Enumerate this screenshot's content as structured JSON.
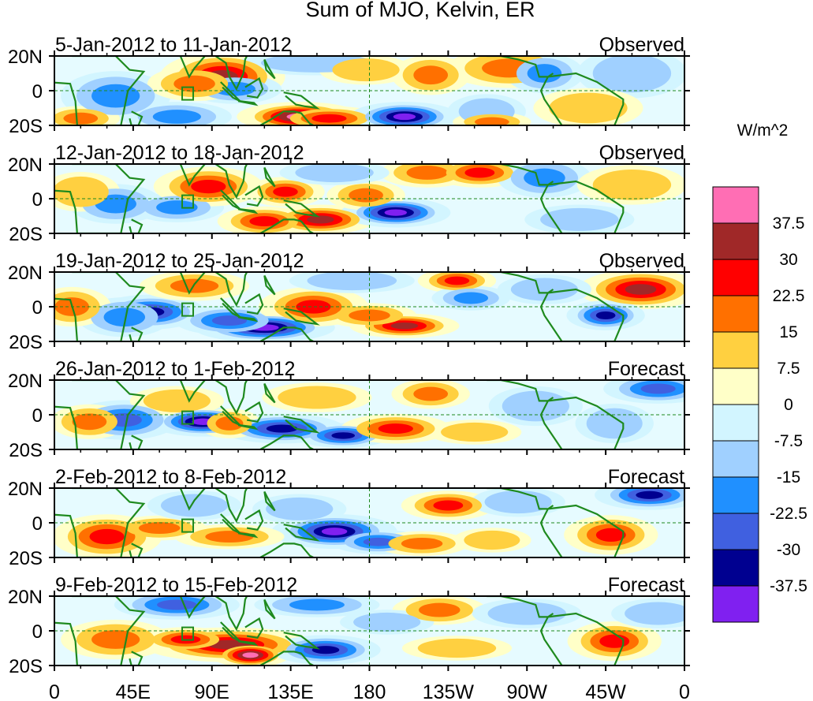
{
  "chart_data": {
    "type": "heatmap",
    "title": "Sum of MJO, Kelvin, ER",
    "units": "W/m^2",
    "x_tick_labels": [
      "0",
      "45E",
      "90E",
      "135E",
      "180",
      "135W",
      "90W",
      "45W",
      "0"
    ],
    "x_ticks_deg": [
      0,
      45,
      90,
      135,
      180,
      225,
      270,
      315,
      360
    ],
    "y_tick_labels": [
      "20N",
      "0",
      "20S"
    ],
    "y_ticks_deg": [
      20,
      0,
      -20
    ],
    "ylim": [
      -20,
      20
    ],
    "xlim": [
      0,
      360
    ],
    "colorbar": {
      "levels": [
        "37.5",
        "30",
        "22.5",
        "15",
        "7.5",
        "0",
        "-7.5",
        "-15",
        "-22.5",
        "-30",
        "-37.5"
      ],
      "colors": [
        "#ff6eb4",
        "#a02828",
        "#ff0000",
        "#ff7000",
        "#ffd040",
        "#ffffc8",
        "#d2f5ff",
        "#a0d0ff",
        "#2090ff",
        "#4060e0",
        "#000090",
        "#8020f0"
      ]
    },
    "panels": [
      {
        "label": "5-Jan-2012 to 11-Jan-2012",
        "type_label": "Observed",
        "blobs": [
          {
            "lon": 96,
            "lat": 8,
            "w": 16,
            "h": 10,
            "v": 30
          },
          {
            "lon": 103,
            "lat": 1,
            "w": 12,
            "h": 6,
            "v": -15
          },
          {
            "lon": 35,
            "lat": -3,
            "w": 14,
            "h": 10,
            "v": -15
          },
          {
            "lon": 80,
            "lat": 4,
            "w": 12,
            "h": 7,
            "v": 15
          },
          {
            "lon": 140,
            "lat": -15,
            "w": 16,
            "h": 6,
            "v": 38
          },
          {
            "lon": 157,
            "lat": -16,
            "w": 14,
            "h": 5,
            "v": 22.5
          },
          {
            "lon": 200,
            "lat": -15,
            "w": 14,
            "h": 6,
            "v": -40
          },
          {
            "lon": 70,
            "lat": -15,
            "w": 14,
            "h": 6,
            "v": -15
          },
          {
            "lon": 215,
            "lat": 9,
            "w": 10,
            "h": 8,
            "v": 15
          },
          {
            "lon": 260,
            "lat": 13,
            "w": 16,
            "h": 8,
            "v": 15
          },
          {
            "lon": 247,
            "lat": -12,
            "w": 10,
            "h": 7,
            "v": -7.5
          },
          {
            "lon": 280,
            "lat": 10,
            "w": 10,
            "h": 8,
            "v": -15
          },
          {
            "lon": 330,
            "lat": 10,
            "w": 14,
            "h": 10,
            "v": -7.5
          },
          {
            "lon": 150,
            "lat": 16,
            "w": 20,
            "h": 5,
            "v": -7.5
          },
          {
            "lon": 178,
            "lat": 12,
            "w": 12,
            "h": 6,
            "v": 7.5
          },
          {
            "lon": 15,
            "lat": -16,
            "w": 10,
            "h": 5,
            "v": 15
          },
          {
            "lon": 305,
            "lat": -10,
            "w": 14,
            "h": 8,
            "v": 7.5
          },
          {
            "lon": 250,
            "lat": -18,
            "w": 10,
            "h": 4,
            "v": 15
          }
        ]
      },
      {
        "label": "12-Jan-2012 to 18-Jan-2012",
        "type_label": "Observed",
        "blobs": [
          {
            "lon": 70,
            "lat": -5,
            "w": 12,
            "h": 6,
            "v": -15
          },
          {
            "lon": 88,
            "lat": 7,
            "w": 14,
            "h": 8,
            "v": 22.5
          },
          {
            "lon": 132,
            "lat": 4,
            "w": 10,
            "h": 6,
            "v": 22.5
          },
          {
            "lon": 152,
            "lat": -12,
            "w": 14,
            "h": 6,
            "v": 30
          },
          {
            "lon": 195,
            "lat": -8,
            "w": 14,
            "h": 6,
            "v": -40
          },
          {
            "lon": 120,
            "lat": -13,
            "w": 12,
            "h": 6,
            "v": 22.5
          },
          {
            "lon": 213,
            "lat": 15,
            "w": 12,
            "h": 6,
            "v": 15
          },
          {
            "lon": 243,
            "lat": 15,
            "w": 12,
            "h": 6,
            "v": 22.5
          },
          {
            "lon": 35,
            "lat": -3,
            "w": 12,
            "h": 8,
            "v": -15
          },
          {
            "lon": 15,
            "lat": 4,
            "w": 10,
            "h": 8,
            "v": 7.5
          },
          {
            "lon": 178,
            "lat": 2,
            "w": 10,
            "h": 6,
            "v": 15
          },
          {
            "lon": 280,
            "lat": 12,
            "w": 12,
            "h": 8,
            "v": -15
          },
          {
            "lon": 300,
            "lat": -12,
            "w": 14,
            "h": 6,
            "v": -7.5
          },
          {
            "lon": 330,
            "lat": 8,
            "w": 14,
            "h": 8,
            "v": 7.5
          },
          {
            "lon": 160,
            "lat": 15,
            "w": 14,
            "h": 5,
            "v": -7.5
          }
        ]
      },
      {
        "label": "19-Jan-2012 to 25-Jan-2012",
        "type_label": "Observed",
        "blobs": [
          {
            "lon": 55,
            "lat": -3,
            "w": 14,
            "h": 7,
            "v": -35
          },
          {
            "lon": 40,
            "lat": -6,
            "w": 12,
            "h": 8,
            "v": -15
          },
          {
            "lon": 120,
            "lat": -12,
            "w": 18,
            "h": 6,
            "v": -40
          },
          {
            "lon": 100,
            "lat": -8,
            "w": 14,
            "h": 6,
            "v": -22.5
          },
          {
            "lon": 148,
            "lat": 0,
            "w": 14,
            "h": 8,
            "v": 22.5
          },
          {
            "lon": 200,
            "lat": -11,
            "w": 14,
            "h": 5,
            "v": 30
          },
          {
            "lon": 180,
            "lat": -5,
            "w": 12,
            "h": 5,
            "v": 15
          },
          {
            "lon": 230,
            "lat": 15,
            "w": 10,
            "h": 5,
            "v": 22.5
          },
          {
            "lon": 335,
            "lat": 10,
            "w": 16,
            "h": 8,
            "v": 30
          },
          {
            "lon": 315,
            "lat": -5,
            "w": 10,
            "h": 6,
            "v": -35
          },
          {
            "lon": 238,
            "lat": 5,
            "w": 10,
            "h": 5,
            "v": -15
          },
          {
            "lon": 10,
            "lat": 0,
            "w": 10,
            "h": 8,
            "v": 15
          },
          {
            "lon": 80,
            "lat": 12,
            "w": 14,
            "h": 6,
            "v": 15
          },
          {
            "lon": 170,
            "lat": 15,
            "w": 16,
            "h": 5,
            "v": -7.5
          },
          {
            "lon": 280,
            "lat": 10,
            "w": 12,
            "h": 6,
            "v": -7.5
          }
        ]
      },
      {
        "label": "26-Jan-2012 to 1-Feb-2012",
        "type_label": "Forecast",
        "blobs": [
          {
            "lon": 85,
            "lat": -4,
            "w": 14,
            "h": 6,
            "v": -40
          },
          {
            "lon": 130,
            "lat": -8,
            "w": 16,
            "h": 6,
            "v": -35
          },
          {
            "lon": 165,
            "lat": -12,
            "w": 12,
            "h": 5,
            "v": -35
          },
          {
            "lon": 195,
            "lat": -8,
            "w": 14,
            "h": 6,
            "v": 22.5
          },
          {
            "lon": 40,
            "lat": -3,
            "w": 14,
            "h": 8,
            "v": -22.5
          },
          {
            "lon": 20,
            "lat": -4,
            "w": 10,
            "h": 7,
            "v": 15
          },
          {
            "lon": 100,
            "lat": -5,
            "w": 8,
            "h": 6,
            "v": 15
          },
          {
            "lon": 215,
            "lat": 12,
            "w": 10,
            "h": 6,
            "v": 15
          },
          {
            "lon": 345,
            "lat": 15,
            "w": 14,
            "h": 6,
            "v": -22.5
          },
          {
            "lon": 320,
            "lat": -5,
            "w": 10,
            "h": 8,
            "v": -7.5
          },
          {
            "lon": 275,
            "lat": 5,
            "w": 12,
            "h": 8,
            "v": -7.5
          },
          {
            "lon": 150,
            "lat": 10,
            "w": 14,
            "h": 6,
            "v": 7.5
          },
          {
            "lon": 70,
            "lat": 8,
            "w": 12,
            "h": 6,
            "v": 7.5
          },
          {
            "lon": 240,
            "lat": -10,
            "w": 12,
            "h": 5,
            "v": 7.5
          }
        ]
      },
      {
        "label": "2-Feb-2012 to 8-Feb-2012",
        "type_label": "Forecast",
        "blobs": [
          {
            "lon": 160,
            "lat": -5,
            "w": 16,
            "h": 7,
            "v": -40
          },
          {
            "lon": 185,
            "lat": -11,
            "w": 12,
            "h": 5,
            "v": -22.5
          },
          {
            "lon": 30,
            "lat": -8,
            "w": 14,
            "h": 9,
            "v": 22.5
          },
          {
            "lon": 60,
            "lat": -3,
            "w": 12,
            "h": 5,
            "v": 15
          },
          {
            "lon": 100,
            "lat": -8,
            "w": 14,
            "h": 5,
            "v": 15
          },
          {
            "lon": 225,
            "lat": 10,
            "w": 12,
            "h": 6,
            "v": 22.5
          },
          {
            "lon": 340,
            "lat": 16,
            "w": 14,
            "h": 6,
            "v": -35
          },
          {
            "lon": 318,
            "lat": -7,
            "w": 12,
            "h": 8,
            "v": 22.5
          },
          {
            "lon": 210,
            "lat": -12,
            "w": 12,
            "h": 5,
            "v": 15
          },
          {
            "lon": 265,
            "lat": 12,
            "w": 12,
            "h": 6,
            "v": -7.5
          },
          {
            "lon": 140,
            "lat": 8,
            "w": 12,
            "h": 6,
            "v": -7.5
          },
          {
            "lon": 80,
            "lat": 10,
            "w": 12,
            "h": 6,
            "v": -7.5
          },
          {
            "lon": 250,
            "lat": -10,
            "w": 10,
            "h": 5,
            "v": 7.5
          }
        ]
      },
      {
        "label": "9-Feb-2012 to 15-Feb-2012",
        "type_label": "Forecast",
        "blobs": [
          {
            "lon": 100,
            "lat": -8,
            "w": 22,
            "h": 7,
            "v": 30
          },
          {
            "lon": 112,
            "lat": -14,
            "w": 10,
            "h": 5,
            "v": 38
          },
          {
            "lon": 75,
            "lat": -5,
            "w": 12,
            "h": 5,
            "v": 22.5
          },
          {
            "lon": 155,
            "lat": -11,
            "w": 14,
            "h": 6,
            "v": -35
          },
          {
            "lon": 70,
            "lat": 15,
            "w": 16,
            "h": 6,
            "v": -22.5
          },
          {
            "lon": 150,
            "lat": 15,
            "w": 16,
            "h": 5,
            "v": -15
          },
          {
            "lon": 35,
            "lat": -5,
            "w": 14,
            "h": 8,
            "v": 15
          },
          {
            "lon": 320,
            "lat": -6,
            "w": 12,
            "h": 8,
            "v": 22.5
          },
          {
            "lon": 220,
            "lat": 12,
            "w": 12,
            "h": 6,
            "v": 15
          },
          {
            "lon": 230,
            "lat": -10,
            "w": 14,
            "h": 5,
            "v": 7.5
          },
          {
            "lon": 270,
            "lat": 10,
            "w": 14,
            "h": 6,
            "v": -7.5
          },
          {
            "lon": 345,
            "lat": 10,
            "w": 12,
            "h": 6,
            "v": -7.5
          },
          {
            "lon": 190,
            "lat": 5,
            "w": 12,
            "h": 5,
            "v": -7.5
          }
        ]
      }
    ]
  }
}
